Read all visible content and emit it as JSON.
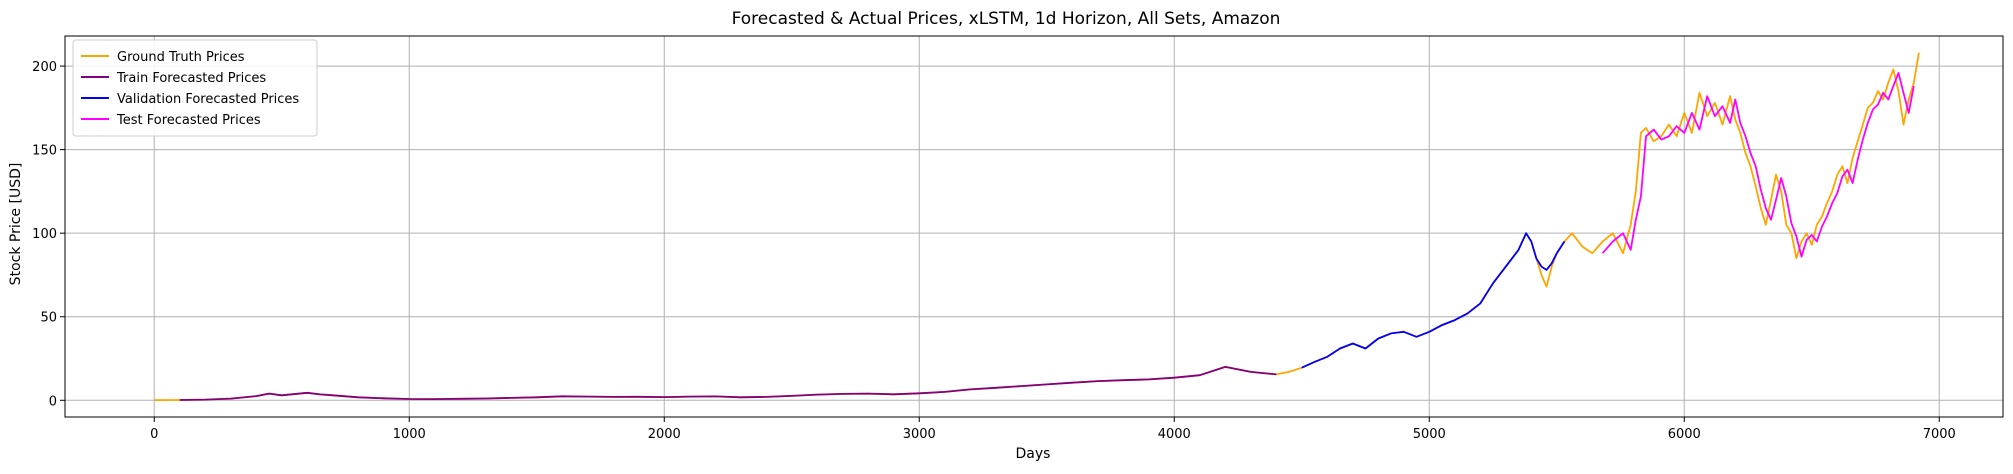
{
  "chart_data": {
    "type": "line",
    "title": "Forecasted & Actual Prices, xLSTM, 1d Horizon, All Sets, Amazon",
    "xlabel": "Days",
    "ylabel": "Stock Price [USD]",
    "xlim": [
      -350,
      7250
    ],
    "ylim": [
      -10,
      218
    ],
    "xticks": [
      0,
      1000,
      2000,
      3000,
      4000,
      5000,
      6000,
      7000
    ],
    "xtick_labels": [
      "0",
      "1000",
      "2000",
      "3000",
      "4000",
      "5000",
      "6000",
      "7000"
    ],
    "yticks": [
      0,
      50,
      100,
      150,
      200
    ],
    "ytick_labels": [
      "0",
      "50",
      "100",
      "150",
      "200"
    ],
    "grid": true,
    "legend_position": "upper-left",
    "series": [
      {
        "name": "Ground Truth Prices",
        "color": "#ffa500",
        "x": [
          0,
          100,
          200,
          300,
          400,
          450,
          500,
          600,
          650,
          700,
          800,
          900,
          1000,
          1100,
          1200,
          1300,
          1400,
          1500,
          1600,
          1700,
          1800,
          1900,
          2000,
          2100,
          2200,
          2300,
          2400,
          2500,
          2600,
          2700,
          2800,
          2900,
          3000,
          3100,
          3200,
          3300,
          3400,
          3500,
          3600,
          3700,
          3800,
          3900,
          4000,
          4100,
          4200,
          4300,
          4400,
          4450,
          4500,
          4550,
          4600,
          4650,
          4700,
          4750,
          4800,
          4850,
          4900,
          4950,
          5000,
          5050,
          5100,
          5150,
          5200,
          5250,
          5300,
          5350,
          5380,
          5400,
          5420,
          5440,
          5460,
          5480,
          5500,
          5530,
          5560,
          5600,
          5640,
          5680,
          5720,
          5760,
          5790,
          5810,
          5830,
          5850,
          5880,
          5910,
          5940,
          5970,
          6000,
          6030,
          6060,
          6090,
          6120,
          6150,
          6180,
          6200,
          6220,
          6240,
          6260,
          6280,
          6300,
          6320,
          6340,
          6360,
          6380,
          6400,
          6420,
          6440,
          6460,
          6480,
          6500,
          6520,
          6540,
          6560,
          6580,
          6600,
          6620,
          6640,
          6660,
          6680,
          6700,
          6720,
          6740,
          6760,
          6780,
          6800,
          6820,
          6840,
          6860,
          6880,
          6900,
          6920
        ],
        "y": [
          0.1,
          0.2,
          0.4,
          1.0,
          2.5,
          4.0,
          3.0,
          4.5,
          3.5,
          3.0,
          1.8,
          1.2,
          0.8,
          0.7,
          0.9,
          1.1,
          1.4,
          1.8,
          2.4,
          2.2,
          2.0,
          2.1,
          1.9,
          2.2,
          2.3,
          1.8,
          2.0,
          2.6,
          3.4,
          3.8,
          4.0,
          3.6,
          4.2,
          5.0,
          6.5,
          7.5,
          8.5,
          9.5,
          10.5,
          11.5,
          12.0,
          12.5,
          13.5,
          15.0,
          20.0,
          17.0,
          15.5,
          17.0,
          19.5,
          23.0,
          26.0,
          31.0,
          34.0,
          31.0,
          37.0,
          40.0,
          41.0,
          38.0,
          41.0,
          45.0,
          48.0,
          52.0,
          58.0,
          70.0,
          80.0,
          90.0,
          100.0,
          95.0,
          85.0,
          75.0,
          68.0,
          80.0,
          88.0,
          95.0,
          100.0,
          92.0,
          88.0,
          95.0,
          100.0,
          88.0,
          105.0,
          125.0,
          160.0,
          163.0,
          155.0,
          158.0,
          165.0,
          158.0,
          172.0,
          160.0,
          184.0,
          170.0,
          178.0,
          165.0,
          182.0,
          168.0,
          160.0,
          148.0,
          140.0,
          128.0,
          115.0,
          105.0,
          120.0,
          135.0,
          125.0,
          105.0,
          100.0,
          85.0,
          95.0,
          100.0,
          93.0,
          105.0,
          110.0,
          118.0,
          125.0,
          135.0,
          140.0,
          130.0,
          145.0,
          155.0,
          165.0,
          175.0,
          178.0,
          185.0,
          180.0,
          190.0,
          198.0,
          185.0,
          165.0,
          180.0,
          190.0,
          208.0
        ]
      },
      {
        "name": "Train Forecasted Prices",
        "color": "#800080",
        "x": [
          100,
          200,
          300,
          400,
          450,
          500,
          600,
          650,
          700,
          800,
          900,
          1000,
          1100,
          1200,
          1300,
          1400,
          1500,
          1600,
          1700,
          1800,
          1900,
          2000,
          2100,
          2200,
          2300,
          2400,
          2500,
          2600,
          2700,
          2800,
          2900,
          3000,
          3100,
          3200,
          3300,
          3400,
          3500,
          3600,
          3700,
          3800,
          3900,
          4000,
          4100,
          4200,
          4300,
          4400
        ],
        "y": [
          0.2,
          0.4,
          1.0,
          2.5,
          4.0,
          3.0,
          4.5,
          3.5,
          3.0,
          1.8,
          1.2,
          0.8,
          0.7,
          0.9,
          1.1,
          1.4,
          1.8,
          2.4,
          2.2,
          2.0,
          2.1,
          1.9,
          2.2,
          2.3,
          1.8,
          2.0,
          2.6,
          3.4,
          3.8,
          4.0,
          3.6,
          4.2,
          5.0,
          6.5,
          7.5,
          8.5,
          9.5,
          10.5,
          11.5,
          12.0,
          12.5,
          13.5,
          15.0,
          20.0,
          17.0,
          15.5
        ]
      },
      {
        "name": "Validation Forecasted Prices",
        "color": "#0000ff",
        "x": [
          4500,
          4550,
          4600,
          4650,
          4700,
          4750,
          4800,
          4850,
          4900,
          4950,
          5000,
          5050,
          5100,
          5150,
          5200,
          5250,
          5300,
          5350,
          5380,
          5400,
          5420,
          5440,
          5460,
          5480,
          5500,
          5530
        ],
        "y": [
          19.5,
          23.0,
          26.0,
          31.0,
          34.0,
          31.0,
          37.0,
          40.0,
          41.0,
          38.0,
          41.0,
          45.0,
          48.0,
          52.0,
          58.0,
          70.0,
          80.0,
          90.0,
          100.0,
          95.0,
          85.0,
          80.0,
          78.0,
          82.0,
          88.0,
          95.0
        ]
      },
      {
        "name": "Test Forecasted Prices",
        "color": "#ff00ff",
        "x": [
          5680,
          5720,
          5760,
          5790,
          5810,
          5830,
          5850,
          5880,
          5910,
          5940,
          5970,
          6000,
          6030,
          6060,
          6090,
          6120,
          6150,
          6180,
          6200,
          6220,
          6240,
          6260,
          6280,
          6300,
          6320,
          6340,
          6360,
          6380,
          6400,
          6420,
          6440,
          6460,
          6480,
          6500,
          6520,
          6540,
          6560,
          6580,
          6600,
          6620,
          6640,
          6660,
          6680,
          6700,
          6720,
          6740,
          6760,
          6780,
          6800,
          6820,
          6840,
          6860,
          6880,
          6900
        ],
        "y": [
          88.0,
          95.0,
          100.0,
          90.0,
          108.0,
          122.0,
          158.0,
          162.0,
          156.0,
          158.0,
          164.0,
          160.0,
          172.0,
          162.0,
          182.0,
          170.0,
          176.0,
          166.0,
          180.0,
          166.0,
          158.0,
          148.0,
          140.0,
          126.0,
          115.0,
          108.0,
          120.0,
          133.0,
          122.0,
          106.0,
          98.0,
          86.0,
          96.0,
          99.0,
          95.0,
          104.0,
          110.0,
          118.0,
          124.0,
          134.0,
          138.0,
          130.0,
          144.0,
          156.0,
          166.0,
          174.0,
          177.0,
          184.0,
          180.0,
          188.0,
          196.0,
          184.0,
          172.0,
          188.0
        ]
      }
    ]
  }
}
